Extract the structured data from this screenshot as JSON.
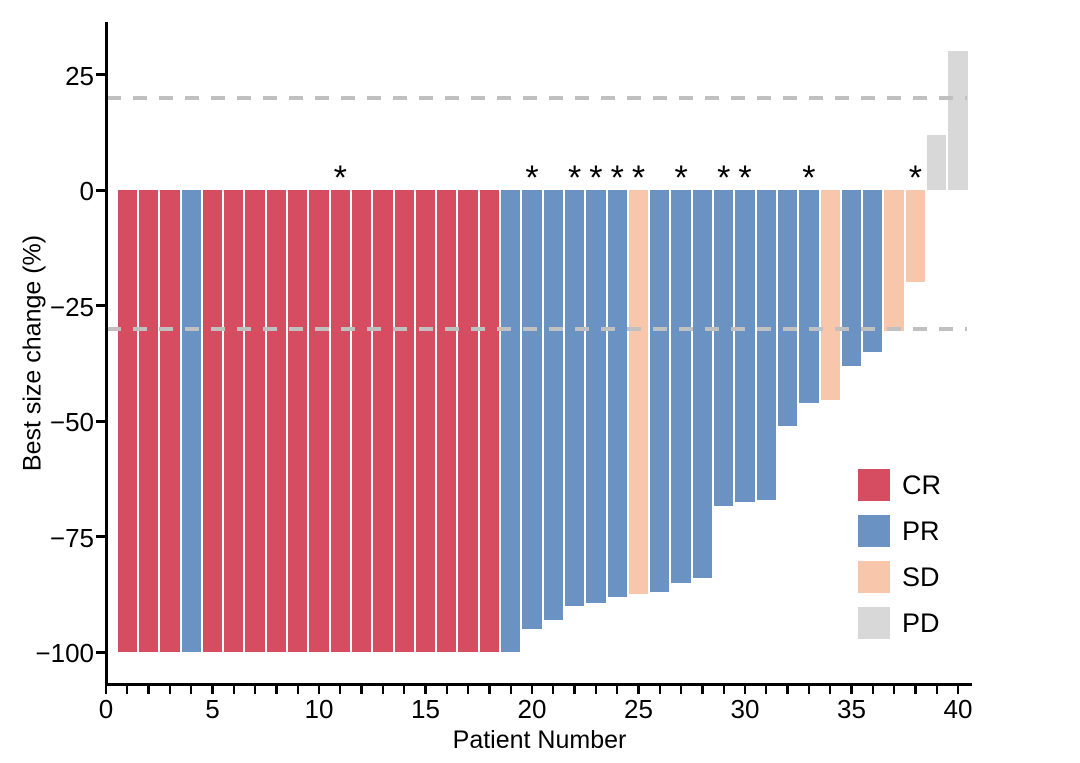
{
  "chart_data": {
    "type": "bar",
    "subtype": "waterfall",
    "title": "",
    "xlabel": "Patient Number",
    "ylabel": "Best size change (%)",
    "annotation_symbol": "*",
    "grid": false,
    "legend_position": "inside-right",
    "x_axis": {
      "major_tick_labels": [
        "0",
        "5",
        "10",
        "15",
        "20",
        "25",
        "30",
        "35",
        "40"
      ],
      "major_tick_values": [
        0,
        5,
        10,
        15,
        20,
        25,
        30,
        35,
        40
      ],
      "minor_tick_every": 1,
      "range": [
        0,
        40.7
      ]
    },
    "y_axis": {
      "ticks": [
        {
          "v": 25,
          "label": "25"
        },
        {
          "v": 0,
          "label": "0"
        },
        {
          "v": -25,
          "label": "−25"
        },
        {
          "v": -50,
          "label": "−50"
        },
        {
          "v": -75,
          "label": "−75"
        },
        {
          "v": -100,
          "label": "−100"
        }
      ],
      "range": [
        -107,
        36.5
      ]
    },
    "reference_lines": [
      20,
      -30
    ],
    "reference_line_color": "#C0C0C0",
    "legend": [
      {
        "code": "CR",
        "label": "CR",
        "color": "#D64D61"
      },
      {
        "code": "PR",
        "label": "PR",
        "color": "#6A93C4"
      },
      {
        "code": "SD",
        "label": "SD",
        "color": "#F7C6AB"
      },
      {
        "code": "PD",
        "label": "PD",
        "color": "#D8D8D8"
      }
    ],
    "patients": [
      {
        "id": 1,
        "value": -100,
        "response": "CR",
        "star": false
      },
      {
        "id": 2,
        "value": -100,
        "response": "CR",
        "star": false
      },
      {
        "id": 3,
        "value": -100,
        "response": "CR",
        "star": false
      },
      {
        "id": 4,
        "value": -100,
        "response": "PR",
        "star": false
      },
      {
        "id": 5,
        "value": -100,
        "response": "CR",
        "star": false
      },
      {
        "id": 6,
        "value": -100,
        "response": "CR",
        "star": false
      },
      {
        "id": 7,
        "value": -100,
        "response": "CR",
        "star": false
      },
      {
        "id": 8,
        "value": -100,
        "response": "CR",
        "star": false
      },
      {
        "id": 9,
        "value": -100,
        "response": "CR",
        "star": false
      },
      {
        "id": 10,
        "value": -100,
        "response": "CR",
        "star": false
      },
      {
        "id": 11,
        "value": -100,
        "response": "CR",
        "star": true
      },
      {
        "id": 12,
        "value": -100,
        "response": "CR",
        "star": false
      },
      {
        "id": 13,
        "value": -100,
        "response": "CR",
        "star": false
      },
      {
        "id": 14,
        "value": -100,
        "response": "CR",
        "star": false
      },
      {
        "id": 15,
        "value": -100,
        "response": "CR",
        "star": false
      },
      {
        "id": 16,
        "value": -100,
        "response": "CR",
        "star": false
      },
      {
        "id": 17,
        "value": -100,
        "response": "CR",
        "star": false
      },
      {
        "id": 18,
        "value": -100,
        "response": "CR",
        "star": false
      },
      {
        "id": 19,
        "value": -100,
        "response": "PR",
        "star": false
      },
      {
        "id": 20,
        "value": -95,
        "response": "PR",
        "star": true
      },
      {
        "id": 21,
        "value": -93,
        "response": "PR",
        "star": false
      },
      {
        "id": 22,
        "value": -90,
        "response": "PR",
        "star": true
      },
      {
        "id": 23,
        "value": -89.5,
        "response": "PR",
        "star": true
      },
      {
        "id": 24,
        "value": -88,
        "response": "PR",
        "star": true
      },
      {
        "id": 25,
        "value": -87.5,
        "response": "SD",
        "star": true
      },
      {
        "id": 26,
        "value": -87,
        "response": "PR",
        "star": false
      },
      {
        "id": 27,
        "value": -85,
        "response": "PR",
        "star": true
      },
      {
        "id": 28,
        "value": -84,
        "response": "PR",
        "star": false
      },
      {
        "id": 29,
        "value": -68.5,
        "response": "PR",
        "star": true
      },
      {
        "id": 30,
        "value": -67.5,
        "response": "PR",
        "star": true
      },
      {
        "id": 31,
        "value": -67,
        "response": "PR",
        "star": false
      },
      {
        "id": 32,
        "value": -51,
        "response": "PR",
        "star": false
      },
      {
        "id": 33,
        "value": -46,
        "response": "PR",
        "star": true
      },
      {
        "id": 34,
        "value": -45.5,
        "response": "SD",
        "star": false
      },
      {
        "id": 35,
        "value": -38,
        "response": "PR",
        "star": false
      },
      {
        "id": 36,
        "value": -35,
        "response": "PR",
        "star": false
      },
      {
        "id": 37,
        "value": -30.5,
        "response": "SD",
        "star": false
      },
      {
        "id": 38,
        "value": -20,
        "response": "SD",
        "star": true
      },
      {
        "id": 39,
        "value": 12,
        "response": "PD",
        "star": false
      },
      {
        "id": 40,
        "value": 30,
        "response": "PD",
        "star": false
      }
    ]
  }
}
